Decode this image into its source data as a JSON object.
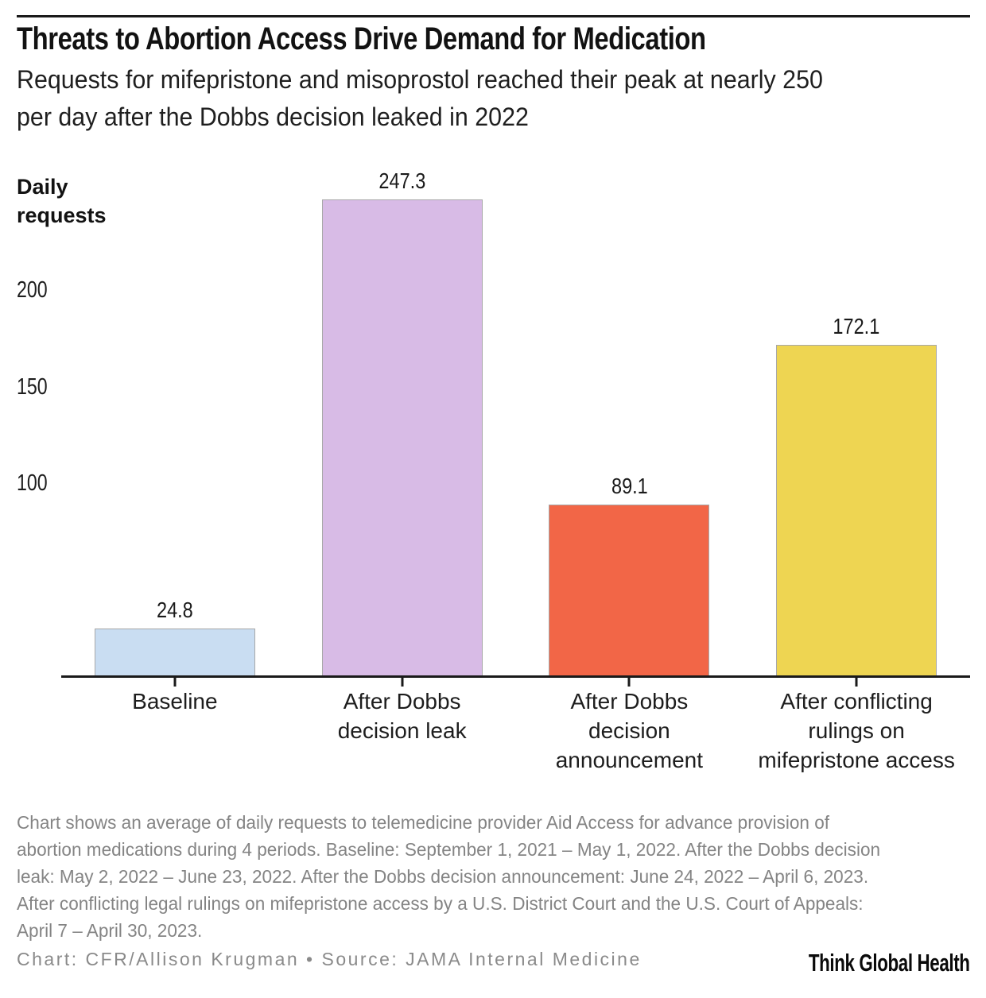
{
  "header": {
    "title": "Threats to Abortion Access Drive Demand for Medication",
    "subtitle": "Requests for mifepristone and misoprostol reached their peak at nearly 250 per day after the Dobbs decision leaked in 2022",
    "subtitle_lines": [
      "Requests for mifepristone and misoprostol reached their peak at nearly 250",
      "per day after the Dobbs decision leaked in 2022"
    ]
  },
  "chart_data": {
    "type": "bar",
    "title": "Threats to Abortion Access Drive Demand for Medication",
    "subtitle": "Requests for mifepristone and misoprostol reached their peak at nearly 250 per day after the Dobbs decision leaked in 2022",
    "ylabel": "Daily requests",
    "ylabel_lines": [
      "Daily",
      "requests"
    ],
    "xlabel": "",
    "yticks": [
      100,
      150,
      200
    ],
    "ylim": [
      0,
      260
    ],
    "grid": false,
    "legend": false,
    "categories": [
      "Baseline",
      "After Dobbs decision leak",
      "After Dobbs decision announcement",
      "After conflicting rulings on mifepristone access"
    ],
    "category_lines": [
      [
        "Baseline"
      ],
      [
        "After Dobbs",
        "decision leak"
      ],
      [
        "After Dobbs",
        "decision",
        "announcement"
      ],
      [
        "After conflicting",
        "rulings on",
        "mifepristone access"
      ]
    ],
    "values": [
      24.8,
      247.3,
      89.1,
      172.1
    ],
    "value_labels": [
      "24.8",
      "247.3",
      "89.1",
      "172.1"
    ],
    "bar_colors": [
      "#c9ddf2",
      "#d8bbe6",
      "#f26647",
      "#eed552"
    ],
    "bar_border_color": "#a8a8a8",
    "axis_color": "#1a1a1a"
  },
  "notes_lines": [
    "Chart shows an average of daily requests to telemedicine provider Aid Access for advance provision of",
    "abortion medications during 4 periods. Baseline: September 1, 2021 – May 1, 2022. After the Dobbs decision",
    "leak: May 2, 2022 – June 23, 2022. After the Dobbs decision announcement: June 24, 2022 – April 6, 2023.",
    "After conflicting legal rulings on mifepristone access by a U.S. District Court and the U.S. Court of Appeals:",
    "April 7 – April 30, 2023."
  ],
  "footer": {
    "credit": "Chart: CFR/Allison Krugman • Source: JAMA Internal Medicine",
    "logo": "Think Global Health"
  }
}
